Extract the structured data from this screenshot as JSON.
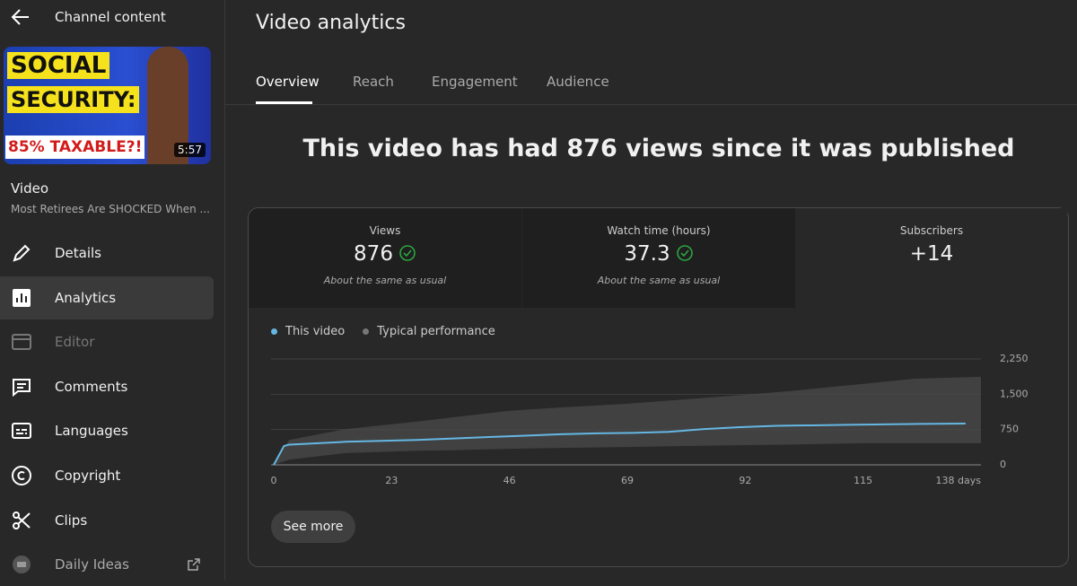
{
  "sidebar": {
    "back_label": "Channel content",
    "thumbnail": {
      "line1": "SOCIAL",
      "line2": "SECURITY:",
      "line3": "85% TAXABLE?!",
      "duration": "5:57"
    },
    "video_label": "Video",
    "video_title": "Most Retirees Are SHOCKED When ...",
    "nav": [
      "Details",
      "Analytics",
      "Editor",
      "Comments",
      "Languages",
      "Copyright",
      "Clips",
      "Daily Ideas"
    ]
  },
  "header": {
    "title": "Video analytics",
    "tabs": [
      "Overview",
      "Reach",
      "Engagement",
      "Audience"
    ]
  },
  "headline": "This video has had 876 views since it was published",
  "metrics": [
    {
      "label": "Views",
      "value": "876",
      "note": "About the same as usual"
    },
    {
      "label": "Watch time (hours)",
      "value": "37.3",
      "note": "About the same as usual"
    },
    {
      "label": "Subscribers",
      "value": "+14"
    }
  ],
  "chart_data": {
    "type": "line",
    "x": [
      0,
      1,
      2,
      3,
      7,
      14,
      21,
      28,
      35,
      42,
      49,
      56,
      63,
      70,
      77,
      84,
      91,
      98,
      105,
      112,
      119,
      126,
      135
    ],
    "series": [
      {
        "name": "This video",
        "color": "#65b7e3",
        "values": [
          0,
          200,
          400,
          430,
          450,
          490,
          510,
          530,
          560,
          590,
          620,
          650,
          670,
          680,
          700,
          760,
          800,
          830,
          840,
          850,
          860,
          870,
          876
        ]
      },
      {
        "name": "Typical performance",
        "color": "#4a4a4a",
        "x": [
          0,
          3,
          14,
          28,
          35,
          46,
          56,
          69,
          80,
          92,
          100,
          115,
          125,
          138
        ],
        "upper": [
          0,
          530,
          760,
          920,
          1010,
          1150,
          1220,
          1300,
          1390,
          1490,
          1560,
          1720,
          1830,
          1870
        ],
        "lower": [
          0,
          110,
          250,
          300,
          310,
          340,
          360,
          380,
          400,
          420,
          430,
          460,
          460,
          460
        ]
      }
    ],
    "xlim": [
      0,
      138
    ],
    "xticks": [
      0,
      23,
      46,
      69,
      92,
      115,
      {
        "value": 138,
        "label": "138 days"
      }
    ],
    "ylim": [
      0,
      2250
    ],
    "yticks": [
      0,
      750,
      {
        "value": 1500,
        "label": "1,500"
      },
      {
        "value": 2250,
        "label": "2,250"
      }
    ],
    "grid": true
  },
  "button": "See more"
}
